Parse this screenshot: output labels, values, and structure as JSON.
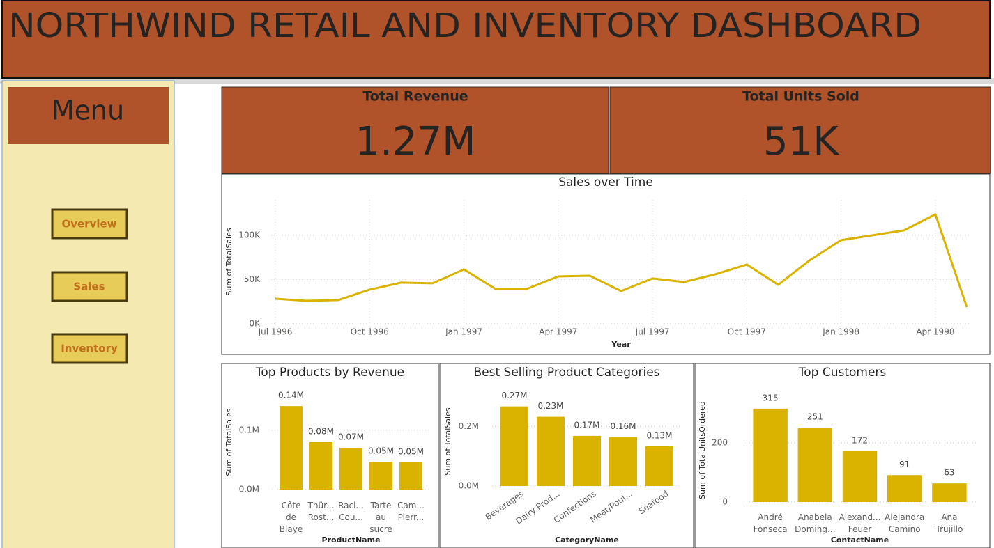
{
  "header": {
    "title": "NORTHWIND RETAIL AND INVENTORY DASHBOARD"
  },
  "menu": {
    "title": "Menu",
    "buttons": [
      "Overview",
      "Sales",
      "Inventory"
    ]
  },
  "kpis": [
    {
      "label": "Total Revenue",
      "value": "1.27M"
    },
    {
      "label": "Total Units Sold",
      "value": "51K"
    }
  ],
  "chart_data": [
    {
      "type": "line",
      "title": "Sales over Time",
      "x_label": "Year",
      "y_label": "Sum of TotalSales",
      "categories": [
        "Jul 1996",
        null,
        null,
        "Oct 1996",
        null,
        null,
        "Jan 1997",
        null,
        null,
        "Apr 1997",
        null,
        null,
        "Jul 1997",
        null,
        null,
        "Oct 1997",
        null,
        null,
        "Jan 1998",
        null,
        null,
        "Apr 1998",
        null
      ],
      "values": [
        28300,
        26000,
        26800,
        38600,
        46500,
        45700,
        61400,
        39400,
        39400,
        53500,
        54300,
        37000,
        51200,
        47200,
        55900,
        66900,
        44100,
        71700,
        94500,
        100000,
        105500,
        123600,
        18900
      ],
      "color": "#D9B300",
      "ylim": [
        0,
        140000
      ],
      "yticks": [
        {
          "value": 0,
          "label": "0K"
        },
        {
          "value": 50000,
          "label": "50K"
        },
        {
          "value": 100000,
          "label": "100K"
        }
      ],
      "grid": true
    },
    {
      "type": "bar",
      "title": "Top Products by Revenue",
      "x_label": "ProductName",
      "y_label": "Sum of TotalSales",
      "categories": [
        "Côte de Blaye",
        "Thür... Rost...",
        "Racl... Cou...",
        "Tarte au sucre",
        "Cam... Pierr..."
      ],
      "values": [
        141000,
        80000,
        70600,
        47000,
        45900
      ],
      "value_labels": [
        "0.14M",
        "0.08M",
        "0.07M",
        "0.05M",
        "0.05M"
      ],
      "color": "#D9B300",
      "ylim": [
        0,
        160000
      ],
      "yticks": [
        {
          "value": 0,
          "label": "0.0M"
        },
        {
          "value": 100000,
          "label": "0.1M"
        }
      ],
      "grid": true
    },
    {
      "type": "bar",
      "title": "Best Selling Product Categories",
      "x_label": "CategoryName",
      "y_label": "Sum of TotalSales",
      "categories": [
        "Beverages",
        "Dairy Prod...",
        "Confections",
        "Meat/Poul...",
        "Seafood"
      ],
      "values": [
        268000,
        233000,
        169000,
        165000,
        134000
      ],
      "value_labels": [
        "0.27M",
        "0.23M",
        "0.17M",
        "0.16M",
        "0.13M"
      ],
      "color": "#D9B300",
      "ylim": [
        0,
        300000
      ],
      "yticks": [
        {
          "value": 0,
          "label": "0.0M"
        },
        {
          "value": 200000,
          "label": "0.2M"
        }
      ],
      "grid": true
    },
    {
      "type": "bar",
      "title": "Top Customers",
      "x_label": "ContactName",
      "y_label": "Sum of TotalUnitsOrdered",
      "categories": [
        "André Fonseca",
        "Anabela Doming...",
        "Alexand... Feuer",
        "Alejandra Camino",
        "Ana Trujillo"
      ],
      "values": [
        315,
        251,
        172,
        91,
        63
      ],
      "color": "#D9B300",
      "ylim": [
        0,
        350
      ],
      "yticks": [
        0,
        200
      ],
      "grid": true
    }
  ]
}
